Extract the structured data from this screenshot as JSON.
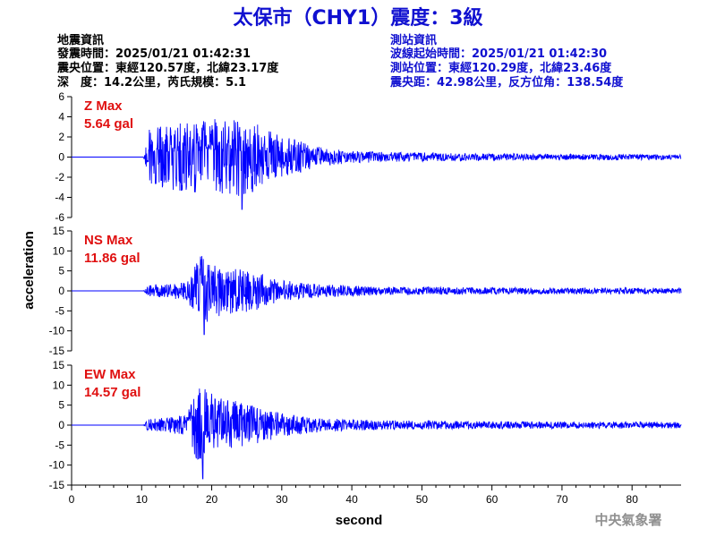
{
  "title": "太保市（CHY1）震度：3級",
  "quake_info": {
    "heading": "地震資訊",
    "origin_time": "發震時間：2025/01/21 01:42:31",
    "epicenter": "震央位置：東經120.57度，北緯23.17度",
    "depth_magnitude": "深　度：14.2公里，芮氏規模：5.1"
  },
  "station_info": {
    "heading": "測站資訊",
    "wave_start": "波線起始時間：2025/01/21 01:42:30",
    "station_location": "測站位置：東經120.29度，北緯23.46度",
    "distance_azimuth": "震央距：42.98公里，反方位角：138.54度"
  },
  "credit": "中央氣象署",
  "colors": {
    "title": "#1010d0",
    "station_info": "#1010d0",
    "trace": "#0000ff",
    "max_label": "#e01010",
    "credit": "#909090"
  },
  "chart_data": {
    "type": "line",
    "xlabel": "second",
    "ylabel": "acceleration",
    "xlim": [
      0,
      87
    ],
    "xticks": [
      0,
      10,
      20,
      30,
      40,
      50,
      60,
      70,
      80
    ],
    "grid": false,
    "legend": "none",
    "panels": [
      {
        "component": "Z",
        "max_label": "Z Max",
        "max_value": "5.64 gal",
        "peak": 5.64,
        "peak_time": 24.3,
        "ylim": [
          -6,
          6
        ],
        "yticks": [
          -6,
          -4,
          -2,
          0,
          2,
          4,
          6
        ],
        "envelope": [
          [
            0,
            0
          ],
          [
            10.2,
            0
          ],
          [
            10.5,
            0.8
          ],
          [
            11,
            3.0
          ],
          [
            12,
            3.2
          ],
          [
            15,
            3.3
          ],
          [
            18,
            3.6
          ],
          [
            20,
            3.8
          ],
          [
            22,
            3.7
          ],
          [
            24,
            4.0
          ],
          [
            26,
            3.5
          ],
          [
            28,
            2.6
          ],
          [
            30,
            2.2
          ],
          [
            33,
            1.5
          ],
          [
            36,
            0.9
          ],
          [
            40,
            0.6
          ],
          [
            45,
            0.5
          ],
          [
            50,
            0.45
          ],
          [
            60,
            0.35
          ],
          [
            70,
            0.3
          ],
          [
            80,
            0.3
          ],
          [
            87,
            0.25
          ]
        ]
      },
      {
        "component": "NS",
        "max_label": "NS Max",
        "max_value": "11.86 gal",
        "peak": 11.86,
        "peak_time": 18.9,
        "ylim": [
          -15,
          15
        ],
        "yticks": [
          -15,
          -10,
          -5,
          0,
          5,
          10,
          15
        ],
        "envelope": [
          [
            0,
            0
          ],
          [
            10.2,
            0
          ],
          [
            10.5,
            0.4
          ],
          [
            11,
            1.4
          ],
          [
            14,
            1.8
          ],
          [
            16.5,
            2.5
          ],
          [
            17.5,
            7.0
          ],
          [
            18.5,
            9.0
          ],
          [
            20,
            7.0
          ],
          [
            22,
            6.0
          ],
          [
            25,
            5.5
          ],
          [
            27,
            4.5
          ],
          [
            30,
            2.8
          ],
          [
            33,
            2.0
          ],
          [
            36,
            1.6
          ],
          [
            40,
            1.3
          ],
          [
            45,
            1.1
          ],
          [
            50,
            1.0
          ],
          [
            60,
            0.85
          ],
          [
            70,
            0.8
          ],
          [
            80,
            0.8
          ],
          [
            87,
            0.7
          ]
        ]
      },
      {
        "component": "EW",
        "max_label": "EW Max",
        "max_value": "14.57 gal",
        "peak": 14.57,
        "peak_time": 18.7,
        "ylim": [
          -15,
          15
        ],
        "yticks": [
          -15,
          -10,
          -5,
          0,
          5,
          10,
          15
        ],
        "envelope": [
          [
            0,
            0
          ],
          [
            10.2,
            0
          ],
          [
            10.5,
            0.5
          ],
          [
            11,
            1.6
          ],
          [
            14,
            2.0
          ],
          [
            16.5,
            2.8
          ],
          [
            17.5,
            8.0
          ],
          [
            18.5,
            10.0
          ],
          [
            20,
            8.0
          ],
          [
            22,
            6.5
          ],
          [
            25,
            5.5
          ],
          [
            27,
            4.5
          ],
          [
            30,
            3.0
          ],
          [
            33,
            2.2
          ],
          [
            36,
            1.7
          ],
          [
            40,
            1.4
          ],
          [
            45,
            1.2
          ],
          [
            50,
            1.1
          ],
          [
            60,
            0.95
          ],
          [
            70,
            0.9
          ],
          [
            80,
            0.85
          ],
          [
            87,
            0.8
          ]
        ]
      }
    ]
  }
}
